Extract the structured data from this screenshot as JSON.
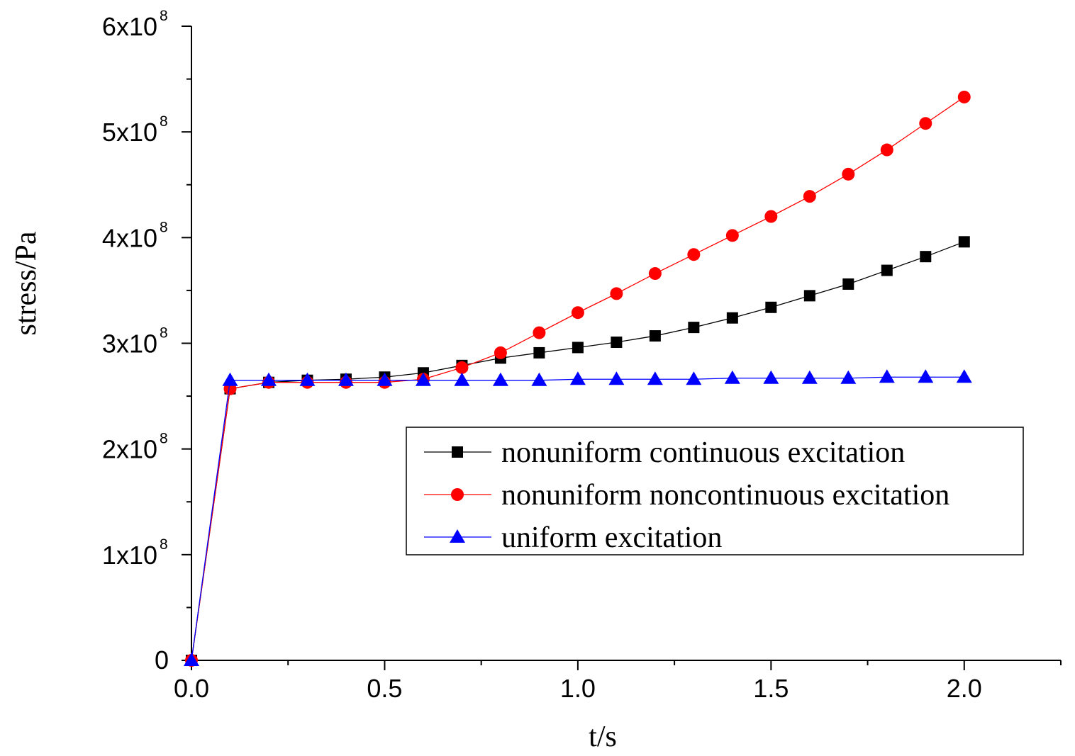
{
  "chart_data": {
    "type": "line",
    "title": "",
    "xlabel": "t/s",
    "ylabel": "stress/Pa",
    "xlim": [
      0,
      2.25
    ],
    "ylim": [
      0,
      600000000
    ],
    "x_ticks": [
      {
        "value": 0.0,
        "label": "0.0"
      },
      {
        "value": 0.5,
        "label": "0.5"
      },
      {
        "value": 1.0,
        "label": "1.0"
      },
      {
        "value": 1.5,
        "label": "1.5"
      },
      {
        "value": 2.0,
        "label": "2.0"
      }
    ],
    "y_ticks": [
      {
        "value": 0,
        "label": "0",
        "exp": ""
      },
      {
        "value": 100000000,
        "label": "1x10",
        "exp": "8"
      },
      {
        "value": 200000000,
        "label": "2x10",
        "exp": "8"
      },
      {
        "value": 300000000,
        "label": "3x10",
        "exp": "8"
      },
      {
        "value": 400000000,
        "label": "4x10",
        "exp": "8"
      },
      {
        "value": 500000000,
        "label": "5x10",
        "exp": "8"
      },
      {
        "value": 600000000,
        "label": "6x10",
        "exp": "8"
      }
    ],
    "x": [
      0,
      0.1,
      0.2,
      0.3,
      0.4,
      0.5,
      0.6,
      0.7,
      0.8,
      0.9,
      1.0,
      1.1,
      1.2,
      1.3,
      1.4,
      1.5,
      1.6,
      1.7,
      1.8,
      1.9,
      2.0
    ],
    "series": [
      {
        "name": "nonuniform continuous excitation",
        "color": "#000000",
        "marker": "square",
        "values": [
          0,
          257000000,
          263000000,
          265000000,
          266000000,
          268000000,
          272000000,
          279000000,
          286000000,
          291000000,
          296000000,
          301000000,
          307000000,
          315000000,
          324000000,
          334000000,
          345000000,
          356000000,
          369000000,
          382000000,
          396000000
        ]
      },
      {
        "name": "nonuniform noncontinuous excitation",
        "color": "#ff0000",
        "marker": "circle",
        "values": [
          0,
          257000000,
          263000000,
          263000000,
          263000000,
          263000000,
          266000000,
          277000000,
          291000000,
          310000000,
          329000000,
          347000000,
          366000000,
          384000000,
          402000000,
          420000000,
          439000000,
          460000000,
          483000000,
          508000000,
          533000000
        ]
      },
      {
        "name": "uniform excitation",
        "color": "#0000ff",
        "marker": "triangle",
        "values": [
          0,
          265000000,
          265000000,
          265000000,
          265000000,
          265000000,
          265000000,
          265000000,
          265000000,
          265000000,
          266000000,
          266000000,
          266000000,
          266000000,
          267000000,
          267000000,
          267000000,
          267000000,
          268000000,
          268000000,
          268000000
        ]
      }
    ],
    "legend_position": "center-right"
  }
}
